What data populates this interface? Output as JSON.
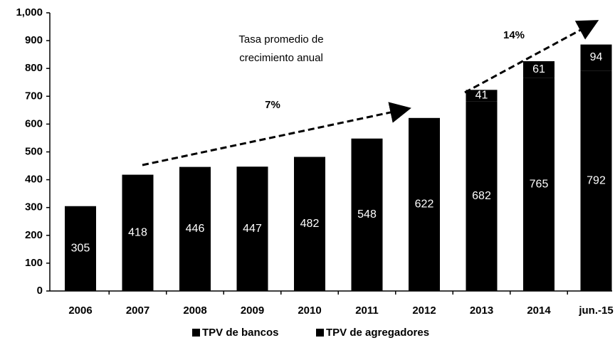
{
  "chart_data": {
    "type": "bar",
    "stacked": true,
    "annotations": [
      "Tasa promedio de",
      "crecimiento anual",
      "7%",
      "14%"
    ],
    "categories": [
      "2006",
      "2007",
      "2008",
      "2009",
      "2010",
      "2011",
      "2012",
      "2013",
      "2014",
      "jun.-15"
    ],
    "series": [
      {
        "name": "TPV de bancos",
        "color": "#000000",
        "values": [
          305,
          418,
          446,
          447,
          482,
          548,
          622,
          682,
          765,
          792
        ]
      },
      {
        "name": "TPV de agregadores",
        "color": "#000000",
        "values": [
          null,
          null,
          null,
          null,
          null,
          null,
          null,
          41,
          61,
          94
        ]
      }
    ],
    "ylim": [
      0,
      1000
    ],
    "yticks": [
      0,
      100,
      200,
      300,
      400,
      500,
      600,
      700,
      800,
      900,
      {
        "value": 1000,
        "label": "1,000"
      }
    ],
    "grid": false,
    "legend": "bottom"
  }
}
